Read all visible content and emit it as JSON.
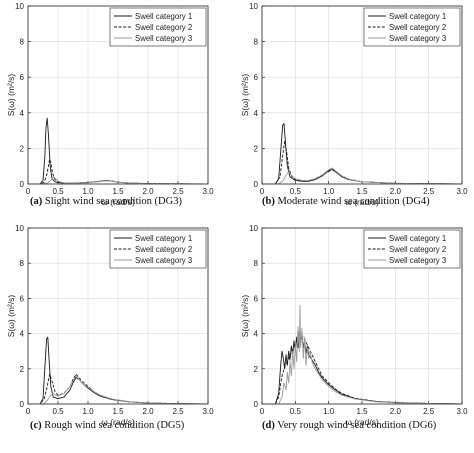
{
  "chart_data": [
    {
      "type": "line",
      "panel_label": "(a)",
      "caption": "Slight wind sea condition (DG3)",
      "xlabel": "ω (rad/s)",
      "ylabel": "S(ω) (m²/s)",
      "xlim": [
        0,
        3
      ],
      "ylim": [
        0,
        10
      ],
      "xticks": [
        "0",
        "0.5",
        "1.0",
        "1.5",
        "2.0",
        "2.5",
        "3.0"
      ],
      "yticks": [
        "0",
        "2",
        "4",
        "6",
        "8",
        "10"
      ],
      "grid": true,
      "legend_position": "top-right",
      "series": [
        {
          "name": "Swell category 1",
          "dash": "solid",
          "color": "#1a1a1a",
          "x": [
            0.0,
            0.2,
            0.25,
            0.28,
            0.3,
            0.32,
            0.34,
            0.37,
            0.4,
            0.45,
            0.5,
            0.6,
            0.8,
            1.0,
            1.2,
            1.3,
            1.4,
            1.5,
            1.7,
            2.0,
            2.5,
            3.0
          ],
          "y": [
            0,
            0,
            0.2,
            1.5,
            3.2,
            3.7,
            2.8,
            1.0,
            0.3,
            0.12,
            0.08,
            0.05,
            0.06,
            0.08,
            0.16,
            0.2,
            0.16,
            0.1,
            0.05,
            0.02,
            0.01,
            0
          ]
        },
        {
          "name": "Swell category 2",
          "dash": "dashed",
          "color": "#1a1a1a",
          "x": [
            0.0,
            0.2,
            0.27,
            0.31,
            0.34,
            0.36,
            0.38,
            0.41,
            0.45,
            0.5,
            0.6,
            0.8,
            1.0,
            1.2,
            1.3,
            1.4,
            1.5,
            1.7,
            2.0,
            2.5,
            3.0
          ],
          "y": [
            0,
            0,
            0.1,
            0.5,
            1.0,
            1.4,
            1.2,
            0.6,
            0.25,
            0.12,
            0.06,
            0.06,
            0.08,
            0.15,
            0.2,
            0.17,
            0.1,
            0.05,
            0.02,
            0.01,
            0
          ]
        },
        {
          "name": "Swell category 3",
          "dash": "solid",
          "color": "#9a9a9a",
          "x": [
            0.0,
            0.25,
            0.32,
            0.38,
            0.42,
            0.46,
            0.5,
            0.6,
            0.8,
            1.0,
            1.2,
            1.3,
            1.4,
            1.5,
            1.7,
            2.0,
            2.5,
            3.0
          ],
          "y": [
            0,
            0,
            0.05,
            0.2,
            0.4,
            0.3,
            0.15,
            0.06,
            0.05,
            0.07,
            0.14,
            0.18,
            0.15,
            0.1,
            0.05,
            0.02,
            0.01,
            0
          ]
        }
      ]
    },
    {
      "type": "line",
      "panel_label": "(b)",
      "caption": "Moderate wind sea condition (DG4)",
      "xlabel": "ω (rad/s)",
      "ylabel": "S(ω) (m²/s)",
      "xlim": [
        0,
        3
      ],
      "ylim": [
        0,
        10
      ],
      "xticks": [
        "0",
        "0.5",
        "1.0",
        "1.5",
        "2.0",
        "2.5",
        "3.0"
      ],
      "yticks": [
        "0",
        "2",
        "4",
        "6",
        "8",
        "10"
      ],
      "grid": true,
      "legend_position": "top-right",
      "series": [
        {
          "name": "Swell category 1",
          "dash": "solid",
          "color": "#1a1a1a",
          "x": [
            0.0,
            0.2,
            0.25,
            0.28,
            0.31,
            0.33,
            0.35,
            0.38,
            0.42,
            0.5,
            0.6,
            0.7,
            0.8,
            0.9,
            1.0,
            1.05,
            1.1,
            1.2,
            1.3,
            1.5,
            2.0,
            2.5,
            3.0
          ],
          "y": [
            0,
            0,
            0.3,
            1.8,
            3.3,
            3.4,
            2.4,
            1.0,
            0.4,
            0.2,
            0.15,
            0.15,
            0.25,
            0.45,
            0.75,
            0.85,
            0.7,
            0.4,
            0.25,
            0.12,
            0.04,
            0.02,
            0
          ]
        },
        {
          "name": "Swell category 2",
          "dash": "dashed",
          "color": "#1a1a1a",
          "x": [
            0.0,
            0.2,
            0.27,
            0.31,
            0.34,
            0.37,
            0.4,
            0.45,
            0.5,
            0.6,
            0.7,
            0.8,
            0.9,
            1.0,
            1.05,
            1.1,
            1.2,
            1.3,
            1.5,
            2.0,
            2.5,
            3.0
          ],
          "y": [
            0,
            0,
            0.4,
            1.6,
            2.4,
            1.8,
            0.9,
            0.4,
            0.25,
            0.18,
            0.2,
            0.3,
            0.5,
            0.7,
            0.8,
            0.7,
            0.45,
            0.28,
            0.12,
            0.04,
            0.02,
            0
          ]
        },
        {
          "name": "Swell category 3",
          "dash": "solid",
          "color": "#9a9a9a",
          "x": [
            0.0,
            0.25,
            0.32,
            0.36,
            0.4,
            0.44,
            0.5,
            0.6,
            0.7,
            0.8,
            0.9,
            1.0,
            1.05,
            1.1,
            1.2,
            1.3,
            1.5,
            2.0,
            2.5,
            3.0
          ],
          "y": [
            0,
            0,
            0.2,
            0.5,
            0.7,
            0.5,
            0.3,
            0.2,
            0.2,
            0.3,
            0.5,
            0.8,
            0.9,
            0.75,
            0.45,
            0.28,
            0.12,
            0.04,
            0.02,
            0
          ]
        }
      ]
    },
    {
      "type": "line",
      "panel_label": "(c)",
      "caption": "Rough wind sea condition (DG5)",
      "xlabel": "ω (rad/s)",
      "ylabel": "S(ω) (m²/s)",
      "xlim": [
        0,
        3
      ],
      "ylim": [
        0,
        10
      ],
      "xticks": [
        "0",
        "0.5",
        "1.0",
        "1.5",
        "2.0",
        "2.5",
        "3.0"
      ],
      "yticks": [
        "0",
        "2",
        "4",
        "6",
        "8",
        "10"
      ],
      "grid": true,
      "legend_position": "top-right",
      "series": [
        {
          "name": "Swell category 1",
          "dash": "solid",
          "color": "#1a1a1a",
          "x": [
            0.0,
            0.2,
            0.25,
            0.28,
            0.31,
            0.33,
            0.35,
            0.38,
            0.42,
            0.5,
            0.6,
            0.7,
            0.75,
            0.8,
            0.85,
            0.9,
            1.0,
            1.1,
            1.2,
            1.4,
            1.7,
            2.0,
            2.5,
            3.0
          ],
          "y": [
            0,
            0,
            0.3,
            2.0,
            3.7,
            3.8,
            2.6,
            1.0,
            0.4,
            0.3,
            0.4,
            0.8,
            1.2,
            1.5,
            1.4,
            1.2,
            0.9,
            0.65,
            0.45,
            0.25,
            0.12,
            0.06,
            0.02,
            0
          ]
        },
        {
          "name": "Swell category 2",
          "dash": "dashed",
          "color": "#1a1a1a",
          "x": [
            0.0,
            0.2,
            0.27,
            0.32,
            0.36,
            0.4,
            0.45,
            0.5,
            0.6,
            0.7,
            0.75,
            0.8,
            0.85,
            0.9,
            1.0,
            1.1,
            1.2,
            1.4,
            1.7,
            2.0,
            2.5,
            3.0
          ],
          "y": [
            0,
            0,
            0.3,
            1.0,
            1.7,
            1.3,
            0.7,
            0.5,
            0.6,
            1.0,
            1.4,
            1.7,
            1.5,
            1.3,
            1.0,
            0.7,
            0.5,
            0.28,
            0.12,
            0.06,
            0.02,
            0
          ]
        },
        {
          "name": "Swell category 3",
          "dash": "solid",
          "color": "#9a9a9a",
          "x": [
            0.0,
            0.25,
            0.32,
            0.38,
            0.42,
            0.46,
            0.5,
            0.6,
            0.7,
            0.75,
            0.8,
            0.85,
            0.9,
            1.0,
            1.1,
            1.2,
            1.4,
            1.7,
            2.0,
            2.5,
            3.0
          ],
          "y": [
            0,
            0,
            0.2,
            0.5,
            0.6,
            0.5,
            0.45,
            0.6,
            1.0,
            1.3,
            1.6,
            1.4,
            1.2,
            0.95,
            0.7,
            0.5,
            0.28,
            0.12,
            0.06,
            0.02,
            0
          ]
        }
      ]
    },
    {
      "type": "line",
      "panel_label": "(d)",
      "caption": "Very rough wind sea condition (DG6)",
      "xlabel": "ω (rad/s)",
      "ylabel": "S(ω) (m²/s)",
      "xlim": [
        0,
        3
      ],
      "ylim": [
        0,
        10
      ],
      "xticks": [
        "0",
        "0.5",
        "1.0",
        "1.5",
        "2.0",
        "2.5",
        "3.0"
      ],
      "yticks": [
        "0",
        "2",
        "4",
        "6",
        "8",
        "10"
      ],
      "grid": true,
      "legend_position": "top-right",
      "series": [
        {
          "name": "Swell category 1",
          "dash": "solid",
          "color": "#1a1a1a",
          "x": [
            0.0,
            0.2,
            0.25,
            0.28,
            0.3,
            0.32,
            0.34,
            0.36,
            0.38,
            0.4,
            0.42,
            0.44,
            0.46,
            0.48,
            0.5,
            0.52,
            0.54,
            0.56,
            0.58,
            0.6,
            0.62,
            0.64,
            0.66,
            0.68,
            0.7,
            0.75,
            0.8,
            0.85,
            0.9,
            1.0,
            1.1,
            1.2,
            1.4,
            1.7,
            2.0,
            2.5,
            3.0
          ],
          "y": [
            0,
            0,
            0.6,
            2.2,
            3.0,
            2.6,
            2.0,
            2.8,
            2.2,
            3.0,
            2.5,
            3.3,
            2.8,
            3.6,
            3.0,
            3.8,
            3.2,
            4.1,
            3.5,
            3.9,
            3.2,
            3.6,
            2.9,
            3.3,
            2.8,
            2.5,
            2.2,
            1.8,
            1.5,
            1.1,
            0.8,
            0.55,
            0.3,
            0.15,
            0.08,
            0.03,
            0
          ]
        },
        {
          "name": "Swell category 2",
          "dash": "dashed",
          "color": "#1a1a1a",
          "x": [
            0.0,
            0.2,
            0.25,
            0.3,
            0.35,
            0.4,
            0.45,
            0.5,
            0.55,
            0.6,
            0.65,
            0.7,
            0.75,
            0.8,
            0.85,
            0.9,
            1.0,
            1.1,
            1.2,
            1.4,
            1.7,
            2.0,
            2.5,
            3.0
          ],
          "y": [
            0,
            0,
            0.4,
            1.6,
            2.2,
            2.6,
            3.0,
            3.4,
            3.8,
            3.9,
            3.6,
            3.2,
            2.8,
            2.4,
            2.0,
            1.6,
            1.2,
            0.85,
            0.6,
            0.32,
            0.15,
            0.08,
            0.03,
            0
          ]
        },
        {
          "name": "Swell category 3",
          "dash": "solid",
          "color": "#9a9a9a",
          "x": [
            0.0,
            0.25,
            0.3,
            0.33,
            0.36,
            0.38,
            0.4,
            0.42,
            0.44,
            0.46,
            0.48,
            0.5,
            0.52,
            0.54,
            0.56,
            0.57,
            0.58,
            0.6,
            0.62,
            0.64,
            0.66,
            0.68,
            0.7,
            0.72,
            0.75,
            0.8,
            0.85,
            0.9,
            1.0,
            1.1,
            1.2,
            1.4,
            1.7,
            2.0,
            2.5,
            3.0
          ],
          "y": [
            0,
            0,
            0.4,
            1.2,
            0.8,
            1.8,
            1.2,
            2.4,
            1.6,
            3.0,
            2.0,
            3.4,
            2.4,
            4.4,
            3.0,
            5.6,
            3.2,
            4.3,
            2.6,
            3.8,
            2.2,
            3.2,
            2.6,
            3.0,
            2.4,
            2.0,
            1.7,
            1.4,
            1.0,
            0.7,
            0.5,
            0.28,
            0.13,
            0.07,
            0.03,
            0
          ]
        }
      ]
    }
  ]
}
